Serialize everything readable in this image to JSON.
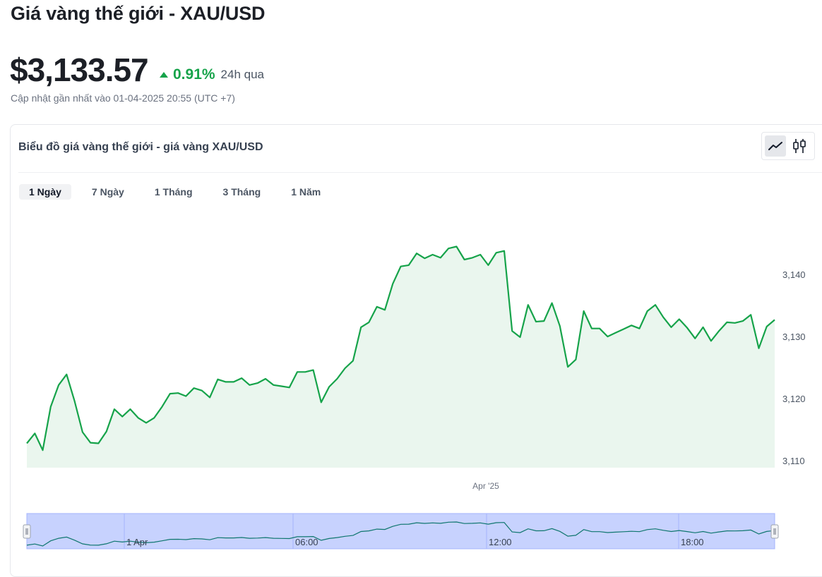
{
  "page": {
    "title": "Giá vàng thế giới - XAU/USD",
    "price": "$3,133.57",
    "change_percent": "0.91%",
    "change_period": "24h qua",
    "change_direction": "up",
    "updated": "Cập nhật gần nhất vào 01-04-2025 20:55 (UTC +7)"
  },
  "card": {
    "title": "Biểu đồ giá vàng thế giới - giá vàng XAU/USD",
    "chart_type_buttons": [
      {
        "name": "line-chart-icon",
        "active": true
      },
      {
        "name": "candlestick-icon",
        "active": false
      }
    ]
  },
  "tabs": [
    {
      "label": "1 Ngày",
      "active": true
    },
    {
      "label": "7 Ngày",
      "active": false
    },
    {
      "label": "1 Tháng",
      "active": false
    },
    {
      "label": "3 Tháng",
      "active": false
    },
    {
      "label": "1 Năm",
      "active": false
    }
  ],
  "colors": {
    "line": "#16a34a",
    "area": "#eaf6ee",
    "navigator_bg": "#c7d2fe",
    "navigator_line": "#0f766e",
    "positive": "#16a34a"
  },
  "chart_data": {
    "type": "area",
    "title": "",
    "xlabel": "",
    "ylabel": "",
    "ylim": [
      3110,
      3145
    ],
    "y_ticks": [
      3110,
      3120,
      3130,
      3140
    ],
    "y_tick_labels": [
      "3,110",
      "3,120",
      "3,130",
      "3,140"
    ],
    "x_center_label": "Apr '25",
    "grid": false,
    "legend": "none",
    "series": [
      {
        "values": [
          3112.9,
          3114.5,
          3111.8,
          3118.8,
          3122.3,
          3124.0,
          3119.7,
          3114.7,
          3113.0,
          3112.9,
          3114.8,
          3118.4,
          3117.2,
          3118.4,
          3117.0,
          3116.2,
          3117.0,
          3118.8,
          3120.9,
          3121.0,
          3120.5,
          3121.8,
          3121.4,
          3120.3,
          3123.2,
          3122.8,
          3122.8,
          3123.4,
          3122.3,
          3122.6,
          3123.3,
          3122.3,
          3122.1,
          3121.9,
          3124.4,
          3124.4,
          3124.7,
          3119.5,
          3122.0,
          3123.3,
          3125.0,
          3126.2,
          3131.6,
          3132.4,
          3134.9,
          3134.4,
          3138.6,
          3141.4,
          3141.6,
          3143.5,
          3142.7,
          3143.3,
          3142.8,
          3144.3,
          3144.6,
          3142.5,
          3142.8,
          3143.3,
          3141.6,
          3143.6,
          3143.9,
          3131.0,
          3130.0,
          3135.2,
          3132.5,
          3132.6,
          3135.5,
          3131.8,
          3125.2,
          3126.4,
          3134.2,
          3131.4,
          3131.4,
          3130.1,
          3130.7,
          3131.3,
          3131.9,
          3131.4,
          3134.2,
          3135.2,
          3133.2,
          3131.6,
          3132.9,
          3131.5,
          3129.8,
          3131.6,
          3129.4,
          3131.0,
          3132.4,
          3132.3,
          3132.6,
          3133.6,
          3128.2,
          3131.7,
          3132.8
        ]
      }
    ],
    "navigator": {
      "x_labels": [
        "1 Apr",
        "06:00",
        "12:00",
        "18:00"
      ]
    }
  }
}
